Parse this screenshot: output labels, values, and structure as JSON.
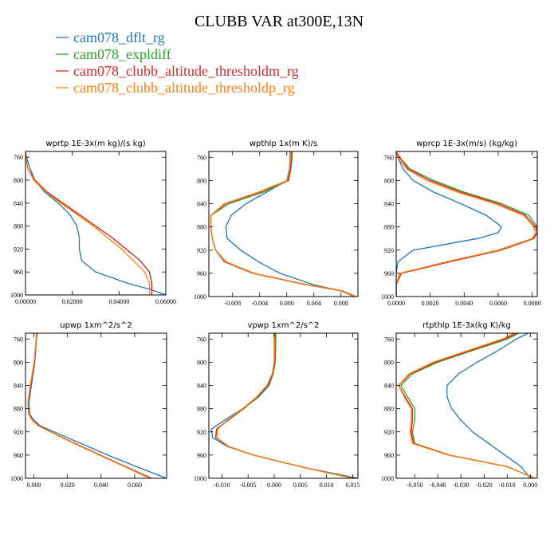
{
  "figure": {
    "title": "CLUBB VAR at300E,13N"
  },
  "colors": {
    "dflt": "#1f77b4",
    "expldiff": "#2ca02c",
    "thresholdm": "#d62728",
    "thresholdp": "#ff7f0e"
  },
  "legend": [
    {
      "name": "cam078_dflt_rg",
      "color": "#1f77b4"
    },
    {
      "name": "cam078_expldiff",
      "color": "#2ca02c"
    },
    {
      "name": "cam078_clubb_altitude_thresholdm_rg",
      "color": "#d62728"
    },
    {
      "name": "cam078_clubb_altitude_thresholdp_rg",
      "color": "#ff7f0e"
    }
  ],
  "chart_data": [
    {
      "type": "line",
      "title": "wprtp  1E-3x(m kg)/(s kg)",
      "xlim": [
        0.0,
        0.06
      ],
      "ylim": [
        1000,
        750
      ],
      "grid": false,
      "xticks": [
        0.0,
        0.02,
        0.04,
        0.06
      ],
      "xtick_labels": [
        "0.00000",
        "0.02000",
        "0.04000",
        "0.06000"
      ],
      "yticks": [
        760,
        800,
        840,
        880,
        920,
        960,
        1000
      ],
      "y": [
        750,
        760,
        780,
        800,
        820,
        840,
        860,
        880,
        900,
        920,
        940,
        960,
        980,
        990,
        1000
      ],
      "series": [
        {
          "name": "cam078_dflt_rg",
          "color": "#1f77b4",
          "values": [
            0.0,
            0.0004,
            0.002,
            0.004,
            0.008,
            0.014,
            0.019,
            0.022,
            0.023,
            0.023,
            0.024,
            0.03,
            0.044,
            0.053,
            0.06
          ]
        },
        {
          "name": "cam078_expldiff",
          "color": "#2ca02c",
          "values": [
            0.0,
            0.0002,
            0.001,
            0.004,
            0.009,
            0.016,
            0.023,
            0.03,
            0.037,
            0.043,
            0.049,
            0.053,
            0.054,
            0.054,
            0.054
          ]
        },
        {
          "name": "cam078_clubb_altitude_thresholdm_rg",
          "color": "#d62728",
          "values": [
            0.0,
            0.0002,
            0.001,
            0.004,
            0.009,
            0.016,
            0.023,
            0.03,
            0.037,
            0.043,
            0.049,
            0.053,
            0.054,
            0.054,
            0.054
          ]
        },
        {
          "name": "cam078_clubb_altitude_thresholdp_rg",
          "color": "#ff7f0e",
          "values": [
            0.0,
            0.0002,
            0.001,
            0.0035,
            0.0085,
            0.015,
            0.022,
            0.029,
            0.035,
            0.041,
            0.046,
            0.051,
            0.053,
            0.053,
            0.053
          ]
        }
      ]
    },
    {
      "type": "line",
      "title": "wpthlp  1x(m K)/s",
      "xlim": [
        -0.0115,
        0.0105
      ],
      "ylim": [
        1000,
        750
      ],
      "grid": false,
      "xticks": [
        -0.008,
        -0.004,
        0.0,
        0.004,
        0.008
      ],
      "xtick_labels": [
        "-0.008",
        "-0.004",
        "0.000",
        "0.004",
        "0.008"
      ],
      "yticks": [
        760,
        800,
        840,
        880,
        920,
        960,
        1000
      ],
      "y": [
        750,
        760,
        780,
        800,
        820,
        840,
        860,
        880,
        900,
        920,
        940,
        960,
        980,
        990,
        1000
      ],
      "series": [
        {
          "name": "cam078_dflt_rg",
          "color": "#1f77b4",
          "values": [
            0.0005,
            0.0005,
            0.0004,
            0.0,
            -0.003,
            -0.006,
            -0.0082,
            -0.009,
            -0.0088,
            -0.0068,
            -0.0042,
            -0.001,
            0.004,
            0.008,
            0.01
          ]
        },
        {
          "name": "cam078_expldiff",
          "color": "#2ca02c",
          "values": [
            0.0008,
            0.0008,
            0.0006,
            0.0003,
            -0.0035,
            -0.0085,
            -0.0112,
            -0.0112,
            -0.011,
            -0.0105,
            -0.0092,
            -0.005,
            0.003,
            0.008,
            0.01
          ]
        },
        {
          "name": "cam078_clubb_altitude_thresholdm_rg",
          "color": "#d62728",
          "values": [
            0.0007,
            0.0007,
            0.0005,
            0.0002,
            -0.004,
            -0.009,
            -0.0112,
            -0.0112,
            -0.011,
            -0.0105,
            -0.0092,
            -0.005,
            0.003,
            0.008,
            0.01
          ]
        },
        {
          "name": "cam078_clubb_altitude_thresholdp_rg",
          "color": "#ff7f0e",
          "values": [
            0.0006,
            0.0006,
            0.0004,
            0.0001,
            -0.0042,
            -0.0092,
            -0.0112,
            -0.0112,
            -0.011,
            -0.0105,
            -0.009,
            -0.0048,
            0.0032,
            0.0082,
            0.0102
          ]
        }
      ]
    },
    {
      "type": "line",
      "title": "wprcp  1E-3x(m/s) (kg/kg)",
      "xlim": [
        0.0,
        0.0083
      ],
      "ylim": [
        1000,
        750
      ],
      "grid": false,
      "xticks": [
        0.0,
        0.002,
        0.004,
        0.006,
        0.008
      ],
      "xtick_labels": [
        "0.0000",
        "0.0020",
        "0.0040",
        "0.0060",
        "0.0080"
      ],
      "yticks": [
        760,
        800,
        840,
        880,
        920,
        960,
        1000
      ],
      "y": [
        750,
        760,
        780,
        800,
        820,
        840,
        860,
        880,
        890,
        900,
        920,
        940,
        960,
        980,
        1000
      ],
      "series": [
        {
          "name": "cam078_dflt_rg",
          "color": "#1f77b4",
          "values": [
            0.0,
            0.0001,
            0.0004,
            0.001,
            0.0022,
            0.0038,
            0.0053,
            0.0062,
            0.006,
            0.0048,
            0.001,
            0.0001,
            0.0,
            0.0,
            0.0
          ]
        },
        {
          "name": "cam078_expldiff",
          "color": "#2ca02c",
          "values": [
            0.0,
            0.0002,
            0.0008,
            0.0022,
            0.004,
            0.0062,
            0.0078,
            0.0083,
            0.0083,
            0.008,
            0.006,
            0.003,
            0.0002,
            0.0,
            0.0
          ]
        },
        {
          "name": "cam078_clubb_altitude_thresholdm_rg",
          "color": "#d62728",
          "values": [
            0.0,
            0.0002,
            0.0007,
            0.002,
            0.0038,
            0.006,
            0.0076,
            0.0082,
            0.0083,
            0.0081,
            0.0062,
            0.0032,
            0.0003,
            0.0,
            0.0
          ]
        },
        {
          "name": "cam078_clubb_altitude_thresholdp_rg",
          "color": "#ff7f0e",
          "values": [
            0.0,
            0.0001,
            0.0006,
            0.0018,
            0.0036,
            0.0058,
            0.0075,
            0.0081,
            0.0082,
            0.008,
            0.0061,
            0.003,
            0.0002,
            0.0,
            0.0
          ]
        }
      ]
    },
    {
      "type": "line",
      "title": "upwp  1xm^2/s^2",
      "xlim": [
        -0.005,
        0.079
      ],
      "ylim": [
        1000,
        750
      ],
      "grid": false,
      "xticks": [
        0.0,
        0.02,
        0.04,
        0.06
      ],
      "xtick_labels": [
        "0.000",
        "0.020",
        "0.040",
        "0.060"
      ],
      "yticks": [
        760,
        800,
        840,
        880,
        920,
        960,
        1000
      ],
      "y": [
        750,
        760,
        800,
        840,
        870,
        890,
        900,
        910,
        920,
        940,
        960,
        980,
        1000
      ],
      "series": [
        {
          "name": "cam078_dflt_rg",
          "color": "#1f77b4",
          "values": [
            0.0015,
            0.0013,
            0.0005,
            -0.0015,
            -0.003,
            -0.0025,
            0.0,
            0.004,
            0.012,
            0.028,
            0.044,
            0.061,
            0.079
          ]
        },
        {
          "name": "cam078_expldiff",
          "color": "#2ca02c",
          "values": [
            0.002,
            0.0015,
            0.0003,
            -0.002,
            -0.0035,
            -0.003,
            -0.0008,
            0.003,
            0.01,
            0.0245,
            0.0395,
            0.0545,
            0.07
          ]
        },
        {
          "name": "cam078_clubb_altitude_thresholdm_rg",
          "color": "#d62728",
          "values": [
            0.002,
            0.0015,
            0.0003,
            -0.002,
            -0.0035,
            -0.003,
            -0.0008,
            0.003,
            0.01,
            0.0245,
            0.0395,
            0.0545,
            0.07
          ]
        },
        {
          "name": "cam078_clubb_altitude_thresholdp_rg",
          "color": "#ff7f0e",
          "values": [
            0.0018,
            0.0013,
            0.0001,
            -0.0022,
            -0.0036,
            -0.0031,
            -0.001,
            0.0028,
            0.0098,
            0.024,
            0.039,
            0.054,
            0.069
          ]
        }
      ]
    },
    {
      "type": "line",
      "title": "vpwp  1xm^2/s^2",
      "xlim": [
        -0.0125,
        0.016
      ],
      "ylim": [
        1000,
        750
      ],
      "grid": false,
      "xticks": [
        -0.01,
        -0.005,
        0.0,
        0.005,
        0.01,
        0.015
      ],
      "xtick_labels": [
        "-0.010",
        "-0.005",
        "0.000",
        "0.005",
        "0.010",
        "0.015"
      ],
      "yticks": [
        760,
        800,
        840,
        880,
        920,
        960,
        1000
      ],
      "y": [
        750,
        760,
        800,
        820,
        840,
        860,
        880,
        900,
        915,
        930,
        945,
        960,
        980,
        1000
      ],
      "series": [
        {
          "name": "cam078_dflt_rg",
          "color": "#1f77b4",
          "values": [
            0.0,
            0.0,
            0.0,
            -0.0002,
            -0.001,
            -0.003,
            -0.006,
            -0.0095,
            -0.012,
            -0.0118,
            -0.009,
            -0.004,
            0.005,
            0.016
          ]
        },
        {
          "name": "cam078_expldiff",
          "color": "#2ca02c",
          "values": [
            0.0003,
            0.0003,
            0.0002,
            -0.0002,
            -0.0012,
            -0.0032,
            -0.0058,
            -0.0088,
            -0.011,
            -0.0112,
            -0.0088,
            -0.004,
            0.005,
            0.015
          ]
        },
        {
          "name": "cam078_clubb_altitude_thresholdm_rg",
          "color": "#d62728",
          "values": [
            0.0002,
            0.0002,
            0.0001,
            -0.0003,
            -0.0013,
            -0.0033,
            -0.0059,
            -0.0089,
            -0.011,
            -0.0112,
            -0.0088,
            -0.004,
            0.005,
            0.015
          ]
        },
        {
          "name": "cam078_clubb_altitude_thresholdp_rg",
          "color": "#ff7f0e",
          "values": [
            0.0001,
            0.0001,
            0.0,
            -0.0004,
            -0.0014,
            -0.0034,
            -0.006,
            -0.009,
            -0.0108,
            -0.011,
            -0.0087,
            -0.004,
            0.005,
            0.015
          ]
        }
      ]
    },
    {
      "type": "line",
      "title": "rtpthlp  1E-3x(kg K)/kg",
      "xlim": [
        -0.058,
        0.003
      ],
      "ylim": [
        1000,
        750
      ],
      "grid": false,
      "xticks": [
        -0.05,
        -0.04,
        -0.03,
        -0.02,
        -0.01,
        0.0
      ],
      "xtick_labels": [
        "-0.050",
        "-0.040",
        "-0.030",
        "-0.020",
        "-0.010",
        "0.000"
      ],
      "yticks": [
        760,
        800,
        840,
        880,
        920,
        960,
        1000
      ],
      "y": [
        750,
        760,
        780,
        800,
        820,
        840,
        860,
        880,
        900,
        920,
        940,
        960,
        980,
        1000
      ],
      "series": [
        {
          "name": "cam078_dflt_rg",
          "color": "#1f77b4",
          "values": [
            -0.001,
            -0.006,
            -0.014,
            -0.023,
            -0.031,
            -0.036,
            -0.036,
            -0.034,
            -0.03,
            -0.025,
            -0.018,
            -0.011,
            -0.004,
            0.0
          ]
        },
        {
          "name": "cam078_expldiff",
          "color": "#2ca02c",
          "values": [
            -0.005,
            -0.01,
            -0.025,
            -0.04,
            -0.051,
            -0.056,
            -0.053,
            -0.05,
            -0.05,
            -0.051,
            -0.05,
            -0.035,
            -0.01,
            0.002
          ]
        },
        {
          "name": "cam078_clubb_altitude_thresholdm_rg",
          "color": "#d62728",
          "values": [
            -0.006,
            -0.011,
            -0.026,
            -0.041,
            -0.052,
            -0.057,
            -0.054,
            -0.051,
            -0.051,
            -0.0515,
            -0.0505,
            -0.035,
            -0.01,
            0.002
          ]
        },
        {
          "name": "cam078_clubb_altitude_thresholdp_rg",
          "color": "#ff7f0e",
          "values": [
            -0.007,
            -0.012,
            -0.027,
            -0.042,
            -0.0525,
            -0.057,
            -0.0545,
            -0.0515,
            -0.0515,
            -0.052,
            -0.051,
            -0.0355,
            -0.01,
            0.002
          ]
        }
      ]
    }
  ]
}
